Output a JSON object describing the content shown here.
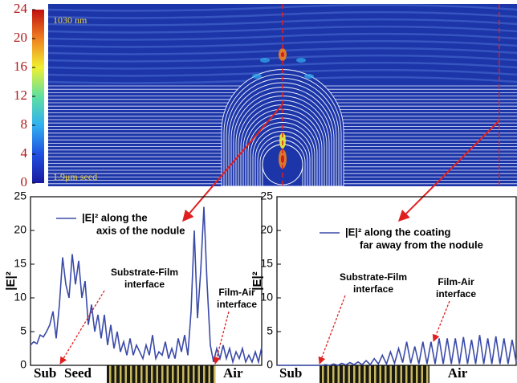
{
  "chart_data": [
    {
      "type": "field-map",
      "labels": [
        "1030 nm",
        "1.9μm seed"
      ],
      "clim": [
        0,
        24
      ],
      "cticks": [
        0,
        4,
        8,
        12,
        16,
        20,
        24
      ],
      "colors": [
        "#1a1aa0",
        "#2050e0",
        "#30b0f0",
        "#60e0a0",
        "#f0f030",
        "#f08020",
        "#c01010"
      ]
    },
    {
      "type": "line",
      "ylabel": "|E|²",
      "legend": [
        "|E|² along the",
        "axis of the nodule"
      ],
      "annotations": [
        [
          "Substrate-Film",
          "interface"
        ],
        [
          "Film-Air",
          "interface"
        ]
      ],
      "layers": [
        "Sub",
        "Seed",
        "Air"
      ],
      "color": "#3a4aa8",
      "ylim": [
        0,
        25
      ],
      "yticks": [
        0,
        5,
        10,
        15,
        20,
        25
      ],
      "values": [
        3,
        3.5,
        3.2,
        4.5,
        4.2,
        5,
        6,
        8,
        4,
        9,
        16,
        12,
        10,
        16.5,
        12,
        15.5,
        10,
        12.5,
        6,
        9,
        5,
        7.5,
        4,
        7.5,
        3,
        6,
        2.5,
        5,
        2,
        3.5,
        1.5,
        4,
        1.5,
        3,
        2,
        1,
        3,
        1.5,
        4.5,
        1,
        2,
        1.5,
        3.5,
        1,
        2.5,
        1,
        4,
        2,
        4.5,
        1.5,
        8,
        20,
        7,
        14,
        23.5,
        12,
        3,
        0.5,
        2.5,
        1,
        3,
        1,
        2.5,
        0.5,
        2,
        1,
        2.5,
        0.5,
        1.5,
        0.5,
        2,
        0.5,
        2.7
      ]
    },
    {
      "type": "line",
      "ylabel": "|E|²",
      "legend": [
        "|E|² along the coating",
        "far away from the nodule"
      ],
      "annotations": [
        [
          "Substrate-Film",
          "interface"
        ],
        [
          "Film-Air",
          "interface"
        ]
      ],
      "layers": [
        "Sub",
        "Air"
      ],
      "color": "#3a4aa8",
      "ylim": [
        0,
        25
      ],
      "yticks": [
        0,
        5,
        10,
        15,
        20,
        25
      ],
      "values": [
        0,
        0,
        0,
        0,
        0,
        0,
        0,
        0,
        0,
        0,
        0,
        0,
        0.1,
        0,
        0.2,
        0,
        0.3,
        0.05,
        0.4,
        0.1,
        0.5,
        0.1,
        0.7,
        0.1,
        1,
        0.2,
        1.5,
        0.2,
        2,
        0.3,
        2.5,
        0.4,
        3.5,
        0.3,
        2.8,
        0.2,
        3.5,
        0.2,
        3.5,
        0.2,
        4,
        0.2,
        4,
        0.2,
        4,
        0.2,
        4.2,
        0.2,
        3.8,
        0.2,
        4.5,
        0.2,
        4,
        0.2,
        4.3,
        0.2,
        4,
        0.2,
        3.8,
        0.5
      ]
    }
  ]
}
